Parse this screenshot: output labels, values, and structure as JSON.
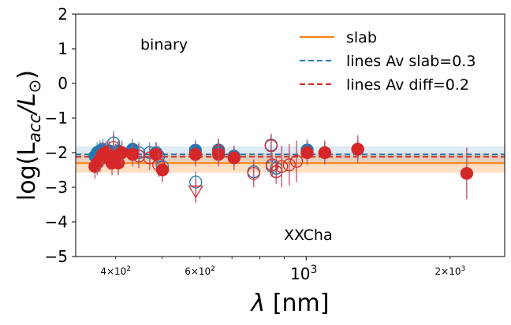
{
  "chart_data": {
    "type": "scatter",
    "title": "",
    "xlabel": "λ [nm]",
    "ylabel": "log(L_acc/L⊙)",
    "xscale": "log",
    "xlim": [
      330,
      2600
    ],
    "ylim": [
      -5,
      2
    ],
    "yticks": [
      2,
      1,
      0,
      -1,
      -2,
      -3,
      -4,
      -5
    ],
    "ytick_labels": [
      "2",
      "1",
      "0",
      "−1",
      "−2",
      "−3",
      "−4",
      "−5"
    ],
    "xticks_major": [
      {
        "value": 1000,
        "base": "10",
        "exp": "3"
      }
    ],
    "xticks_minor_labeled": [
      {
        "value": 400,
        "mant": "4",
        "base": "10",
        "exp": "2"
      },
      {
        "value": 600,
        "mant": "6",
        "base": "10",
        "exp": "2"
      },
      {
        "value": 2000,
        "mant": "2",
        "base": "10",
        "exp": "3"
      }
    ],
    "annotations": {
      "top": "binary",
      "bottom": "XXCha"
    },
    "colors": {
      "slab": "#ff7f0e",
      "blue": "#1f77b4",
      "red": "#d62728",
      "err": "#b5586e"
    },
    "legend": {
      "position": "upper-right",
      "entries": [
        {
          "label": "slab",
          "style": "solid",
          "color": "#ff7f0e"
        },
        {
          "label": "lines Av slab=0.3",
          "style": "dashed",
          "color": "#1f77b4"
        },
        {
          "label": "lines Av diff=0.2",
          "style": "dashed",
          "color": "#d62728"
        }
      ]
    },
    "reference_lines": {
      "slab": {
        "y": -2.3,
        "band": [
          -2.58,
          -2.02
        ]
      },
      "blue": {
        "y": -2.05,
        "band": [
          -2.32,
          -1.82
        ]
      },
      "red": {
        "y": -2.12
      }
    },
    "series": [
      {
        "name": "lines Av slab=0.3",
        "color": "#1f77b4",
        "points": [
          {
            "x": 362,
            "y": -2.1,
            "err": 0.3,
            "filled": true
          },
          {
            "x": 366,
            "y": -2.0,
            "err": 0.3,
            "filled": true
          },
          {
            "x": 371,
            "y": -1.95,
            "err": 0.3,
            "filled": true
          },
          {
            "x": 376,
            "y": -1.9,
            "err": 0.3,
            "filled": true
          },
          {
            "x": 382,
            "y": -2.0,
            "err": 0.3,
            "filled": true
          },
          {
            "x": 388,
            "y": -1.95,
            "err": 0.3,
            "filled": true
          },
          {
            "x": 396,
            "y": -1.72,
            "err": 0.35,
            "filled": false
          },
          {
            "x": 400,
            "y": -2.05,
            "err": 0.3,
            "filled": true
          },
          {
            "x": 405,
            "y": -1.95,
            "err": 0.3,
            "filled": true
          },
          {
            "x": 412,
            "y": -2.0,
            "err": 0.3,
            "filled": true
          },
          {
            "x": 434,
            "y": -1.9,
            "err": 0.3,
            "filled": true
          },
          {
            "x": 447,
            "y": -2.0,
            "err": 0.3,
            "filled": false
          },
          {
            "x": 471,
            "y": -2.0,
            "err": 0.3,
            "filled": false
          },
          {
            "x": 486,
            "y": -2.0,
            "err": 0.3,
            "filled": true
          },
          {
            "x": 492,
            "y": -2.1,
            "err": 0.3,
            "filled": false
          },
          {
            "x": 501,
            "y": -2.4,
            "err": 0.3,
            "filled": false
          },
          {
            "x": 587,
            "y": -1.93,
            "err": 0.3,
            "filled": true
          },
          {
            "x": 588,
            "y": -2.85,
            "err": 0.3,
            "filled": false
          },
          {
            "x": 656,
            "y": -1.92,
            "err": 0.3,
            "filled": true
          },
          {
            "x": 656,
            "y": -2.0,
            "err": 0.3,
            "filled": false
          },
          {
            "x": 707,
            "y": -2.1,
            "err": 0.3,
            "filled": true
          },
          {
            "x": 777,
            "y": -2.55,
            "err": 0.35,
            "filled": false
          },
          {
            "x": 845,
            "y": -1.78,
            "err": 0.3,
            "filled": false
          },
          {
            "x": 849,
            "y": -2.4,
            "err": 0.3,
            "filled": false
          },
          {
            "x": 866,
            "y": -2.45,
            "err": 0.3,
            "filled": false
          },
          {
            "x": 1005,
            "y": -1.92,
            "err": 0.3,
            "filled": true
          },
          {
            "x": 1094,
            "y": -2.0,
            "err": 0.3,
            "filled": true
          },
          {
            "x": 1282,
            "y": -1.9,
            "err": 0.3,
            "filled": true
          }
        ]
      },
      {
        "name": "lines Av diff=0.2",
        "color": "#d62728",
        "points": [
          {
            "x": 362,
            "y": -2.4,
            "err": 0.35,
            "filled": true
          },
          {
            "x": 366,
            "y": -2.3,
            "err": 0.35,
            "filled": true
          },
          {
            "x": 371,
            "y": -2.2,
            "err": 0.35,
            "filled": true
          },
          {
            "x": 376,
            "y": -2.05,
            "err": 0.35,
            "filled": true
          },
          {
            "x": 382,
            "y": -2.0,
            "err": 0.35,
            "filled": true
          },
          {
            "x": 388,
            "y": -2.15,
            "err": 0.35,
            "filled": true
          },
          {
            "x": 393,
            "y": -2.3,
            "err": 0.35,
            "filled": true
          },
          {
            "x": 396,
            "y": -1.85,
            "err": 0.4,
            "filled": false
          },
          {
            "x": 400,
            "y": -2.1,
            "err": 0.35,
            "filled": true
          },
          {
            "x": 405,
            "y": -2.3,
            "err": 0.35,
            "filled": true
          },
          {
            "x": 412,
            "y": -2.0,
            "err": 0.35,
            "filled": true
          },
          {
            "x": 434,
            "y": -2.05,
            "err": 0.35,
            "filled": true
          },
          {
            "x": 447,
            "y": -2.1,
            "err": 0.35,
            "filled": false
          },
          {
            "x": 471,
            "y": -2.15,
            "err": 0.35,
            "filled": false
          },
          {
            "x": 486,
            "y": -2.05,
            "err": 0.35,
            "filled": true
          },
          {
            "x": 492,
            "y": -2.35,
            "err": 0.35,
            "filled": false
          },
          {
            "x": 501,
            "y": -2.5,
            "err": 0.35,
            "filled": true
          },
          {
            "x": 587,
            "y": -2.05,
            "err": 0.35,
            "filled": true
          },
          {
            "x": 588,
            "y": -3.1,
            "err": 0.35,
            "filled": false,
            "marker": "triangle-down"
          },
          {
            "x": 656,
            "y": -2.05,
            "err": 0.35,
            "filled": true
          },
          {
            "x": 656,
            "y": -1.95,
            "err": 0.35,
            "filled": false
          },
          {
            "x": 707,
            "y": -2.15,
            "err": 0.35,
            "filled": true
          },
          {
            "x": 777,
            "y": -2.6,
            "err": 0.4,
            "filled": false
          },
          {
            "x": 845,
            "y": -1.8,
            "err": 0.35,
            "filled": false
          },
          {
            "x": 849,
            "y": -2.35,
            "err": 0.35,
            "filled": false
          },
          {
            "x": 866,
            "y": -2.55,
            "err": 0.35,
            "filled": false
          },
          {
            "x": 889,
            "y": -2.4,
            "err": 0.6,
            "filled": false
          },
          {
            "x": 922,
            "y": -2.35,
            "err": 0.6,
            "filled": false
          },
          {
            "x": 955,
            "y": -2.25,
            "err": 0.6,
            "filled": false
          },
          {
            "x": 1005,
            "y": -2.0,
            "err": 0.35,
            "filled": true
          },
          {
            "x": 1094,
            "y": -2.0,
            "err": 0.35,
            "filled": true
          },
          {
            "x": 1282,
            "y": -1.9,
            "err": 0.4,
            "filled": true
          },
          {
            "x": 2166,
            "y": -2.6,
            "err": 0.75,
            "filled": true
          }
        ]
      }
    ]
  }
}
